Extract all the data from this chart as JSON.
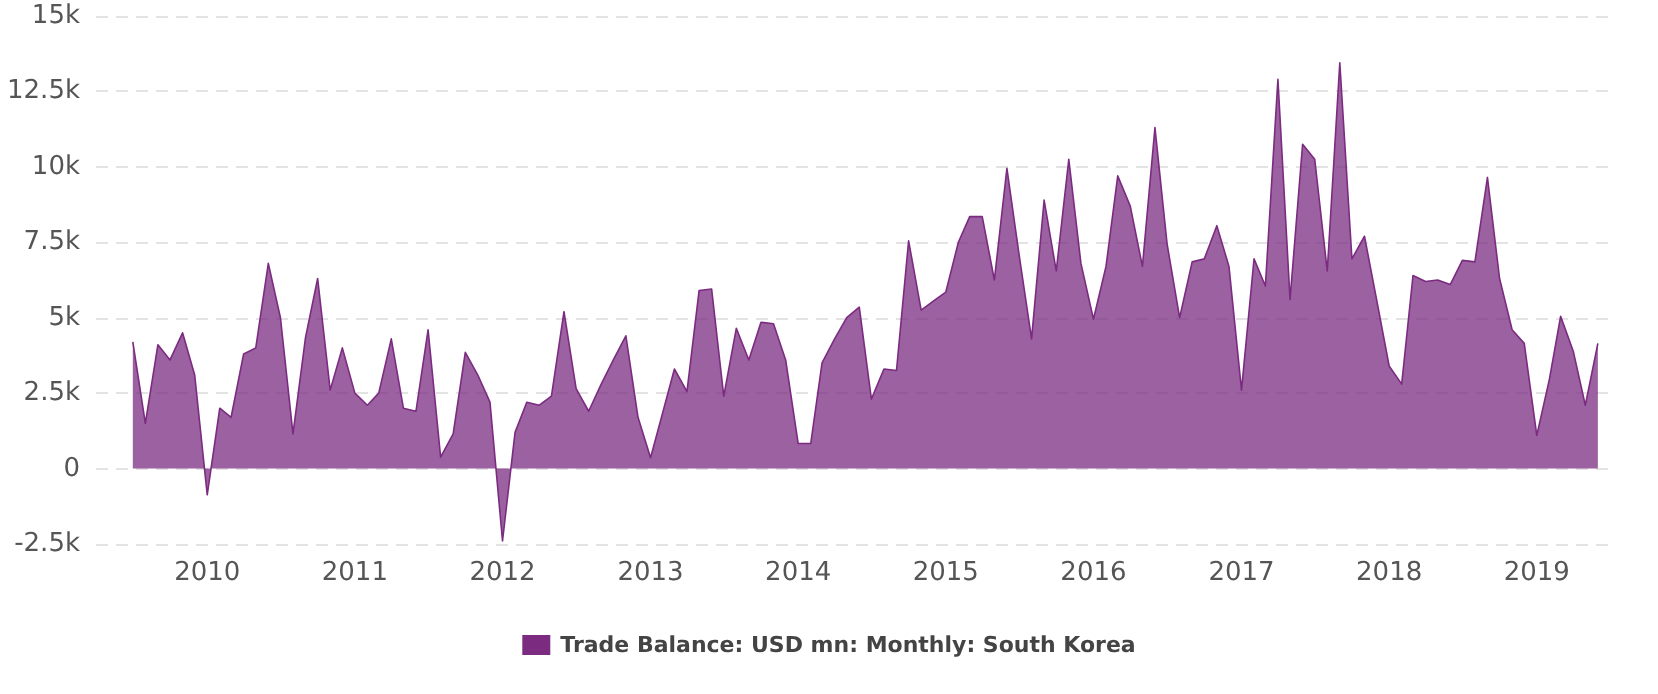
{
  "chart_data": {
    "type": "area",
    "x": [
      "2009-07",
      "2009-08",
      "2009-09",
      "2009-10",
      "2009-11",
      "2009-12",
      "2010-01",
      "2010-02",
      "2010-03",
      "2010-04",
      "2010-05",
      "2010-06",
      "2010-07",
      "2010-08",
      "2010-09",
      "2010-10",
      "2010-11",
      "2010-12",
      "2011-01",
      "2011-02",
      "2011-03",
      "2011-04",
      "2011-05",
      "2011-06",
      "2011-07",
      "2011-08",
      "2011-09",
      "2011-10",
      "2011-11",
      "2011-12",
      "2012-01",
      "2012-02",
      "2012-03",
      "2012-04",
      "2012-05",
      "2012-06",
      "2012-07",
      "2012-08",
      "2012-09",
      "2012-10",
      "2012-11",
      "2012-12",
      "2013-01",
      "2013-02",
      "2013-03",
      "2013-04",
      "2013-05",
      "2013-06",
      "2013-07",
      "2013-08",
      "2013-09",
      "2013-10",
      "2013-11",
      "2013-12",
      "2014-01",
      "2014-02",
      "2014-03",
      "2014-04",
      "2014-05",
      "2014-06",
      "2014-07",
      "2014-08",
      "2014-09",
      "2014-10",
      "2014-11",
      "2014-12",
      "2015-01",
      "2015-02",
      "2015-03",
      "2015-04",
      "2015-05",
      "2015-06",
      "2015-07",
      "2015-08",
      "2015-09",
      "2015-10",
      "2015-11",
      "2015-12",
      "2016-01",
      "2016-02",
      "2016-03",
      "2016-04",
      "2016-05",
      "2016-06",
      "2016-07",
      "2016-08",
      "2016-09",
      "2016-10",
      "2016-11",
      "2016-12",
      "2017-01",
      "2017-02",
      "2017-03",
      "2017-04",
      "2017-05",
      "2017-06",
      "2017-07",
      "2017-08",
      "2017-09",
      "2017-10",
      "2017-11",
      "2017-12",
      "2018-01",
      "2018-02",
      "2018-03",
      "2018-04",
      "2018-05",
      "2018-06",
      "2018-07",
      "2018-08",
      "2018-09",
      "2018-10",
      "2018-11",
      "2018-12",
      "2019-01",
      "2019-02",
      "2019-03",
      "2019-04",
      "2019-05",
      "2019-06"
    ],
    "series": [
      {
        "name": "Trade Balance: USD mn: Monthly: South Korea",
        "color": "#7b2c80",
        "values": [
          4200,
          1500,
          4100,
          3600,
          4500,
          3100,
          -870,
          2000,
          1700,
          3800,
          4000,
          6800,
          5000,
          1150,
          4350,
          6300,
          2600,
          4000,
          2500,
          2100,
          2500,
          4300,
          2000,
          1900,
          4600,
          380,
          1150,
          3850,
          3100,
          2200,
          -2400,
          1200,
          2200,
          2100,
          2400,
          5200,
          2650,
          1900,
          2800,
          3600,
          4400,
          1700,
          360,
          1900,
          3300,
          2550,
          5900,
          5950,
          2400,
          4650,
          3600,
          4850,
          4800,
          3600,
          830,
          830,
          3500,
          4300,
          5000,
          5350,
          2300,
          3300,
          3250,
          7550,
          5250,
          5550,
          5850,
          7500,
          8350,
          8350,
          6250,
          9950,
          7100,
          4300,
          8900,
          6550,
          10250,
          6800,
          4950,
          6700,
          9700,
          8700,
          6700,
          11300,
          7450,
          5000,
          6850,
          6950,
          8050,
          6700,
          2600,
          6950,
          6050,
          12900,
          5600,
          10750,
          10250,
          6550,
          13450,
          6950,
          7700,
          5600,
          3400,
          2800,
          6400,
          6200,
          6250,
          6100,
          6900,
          6850,
          9650,
          6300,
          4600,
          4150,
          1100,
          2950,
          5050,
          3900,
          2100,
          4150
        ]
      }
    ],
    "xlim": [
      "2009-04",
      "2019-07"
    ],
    "xticks": [
      "2010",
      "2011",
      "2012",
      "2013",
      "2014",
      "2015",
      "2016",
      "2017",
      "2018",
      "2019"
    ],
    "ylim": [
      -2500,
      15000
    ],
    "yticks": [
      {
        "value": -2500,
        "label": "-2.5k"
      },
      0,
      {
        "value": 2500,
        "label": "2.5k"
      },
      {
        "value": 5000,
        "label": "5k"
      },
      {
        "value": 7500,
        "label": "7.5k"
      },
      {
        "value": 10000,
        "label": "10k"
      },
      {
        "value": 12500,
        "label": "12.5k"
      },
      {
        "value": 15000,
        "label": "15k"
      }
    ],
    "grid": "y",
    "legend": "bottom",
    "marker": "none",
    "line_style": "solid"
  }
}
